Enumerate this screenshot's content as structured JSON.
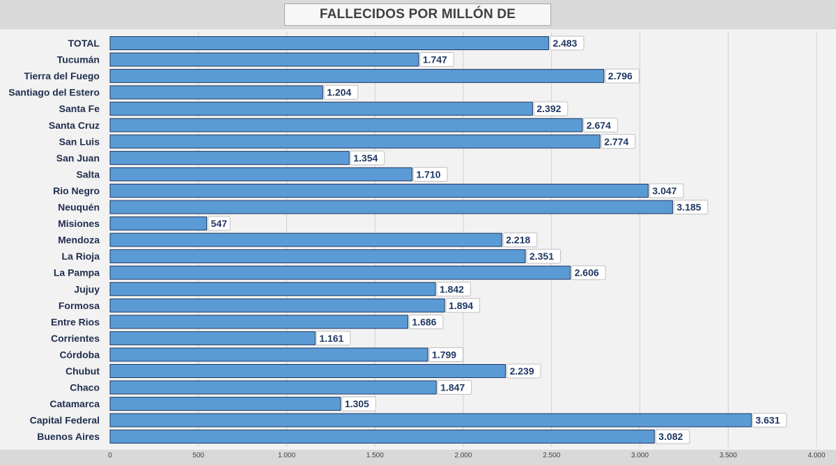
{
  "chart_data": {
    "type": "bar",
    "orientation": "horizontal",
    "title": "FALLECIDOS POR MILLÓN DE HABITANTES",
    "xlabel": "",
    "ylabel": "",
    "xlim": [
      0,
      4000
    ],
    "x_ticks": [
      0,
      500,
      1000,
      1500,
      2000,
      2500,
      3000,
      3500,
      4000
    ],
    "x_tick_labels": [
      "0",
      "500",
      "1.000",
      "1.500",
      "2.000",
      "2.500",
      "3.000",
      "3.500",
      "4.000"
    ],
    "grid": "vertical",
    "legend": "none",
    "bar_color": "#5b9bd5",
    "bar_border_color": "#1f3864",
    "plot_background": "#f2f2f2",
    "categories": [
      "TOTAL",
      "Tucumán",
      "Tierra del Fuego",
      "Santiago del Estero",
      "Santa Fe",
      "Santa Cruz",
      "San Luis",
      "San Juan",
      "Salta",
      "Rio Negro",
      "Neuquén",
      "Misiones",
      "Mendoza",
      "La Rioja",
      "La Pampa",
      "Jujuy",
      "Formosa",
      "Entre Rios",
      "Corrientes",
      "Córdoba",
      "Chubut",
      "Chaco",
      "Catamarca",
      "Capital Federal",
      "Buenos Aires"
    ],
    "values": [
      2483,
      1747,
      2796,
      1204,
      2392,
      2674,
      2774,
      1354,
      1710,
      3047,
      3185,
      547,
      2218,
      2351,
      2606,
      1842,
      1894,
      1686,
      1161,
      1799,
      2239,
      1847,
      1305,
      3631,
      3082
    ],
    "value_labels": [
      "2.483",
      "1.747",
      "2.796",
      "1.204",
      "2.392",
      "2.674",
      "2.774",
      "1.354",
      "1.710",
      "3.047",
      "3.185",
      "547",
      "2.218",
      "2.351",
      "2.606",
      "1.842",
      "1.894",
      "1.686",
      "1.161",
      "1.799",
      "2.239",
      "1.847",
      "1.305",
      "3.631",
      "3.082"
    ]
  }
}
